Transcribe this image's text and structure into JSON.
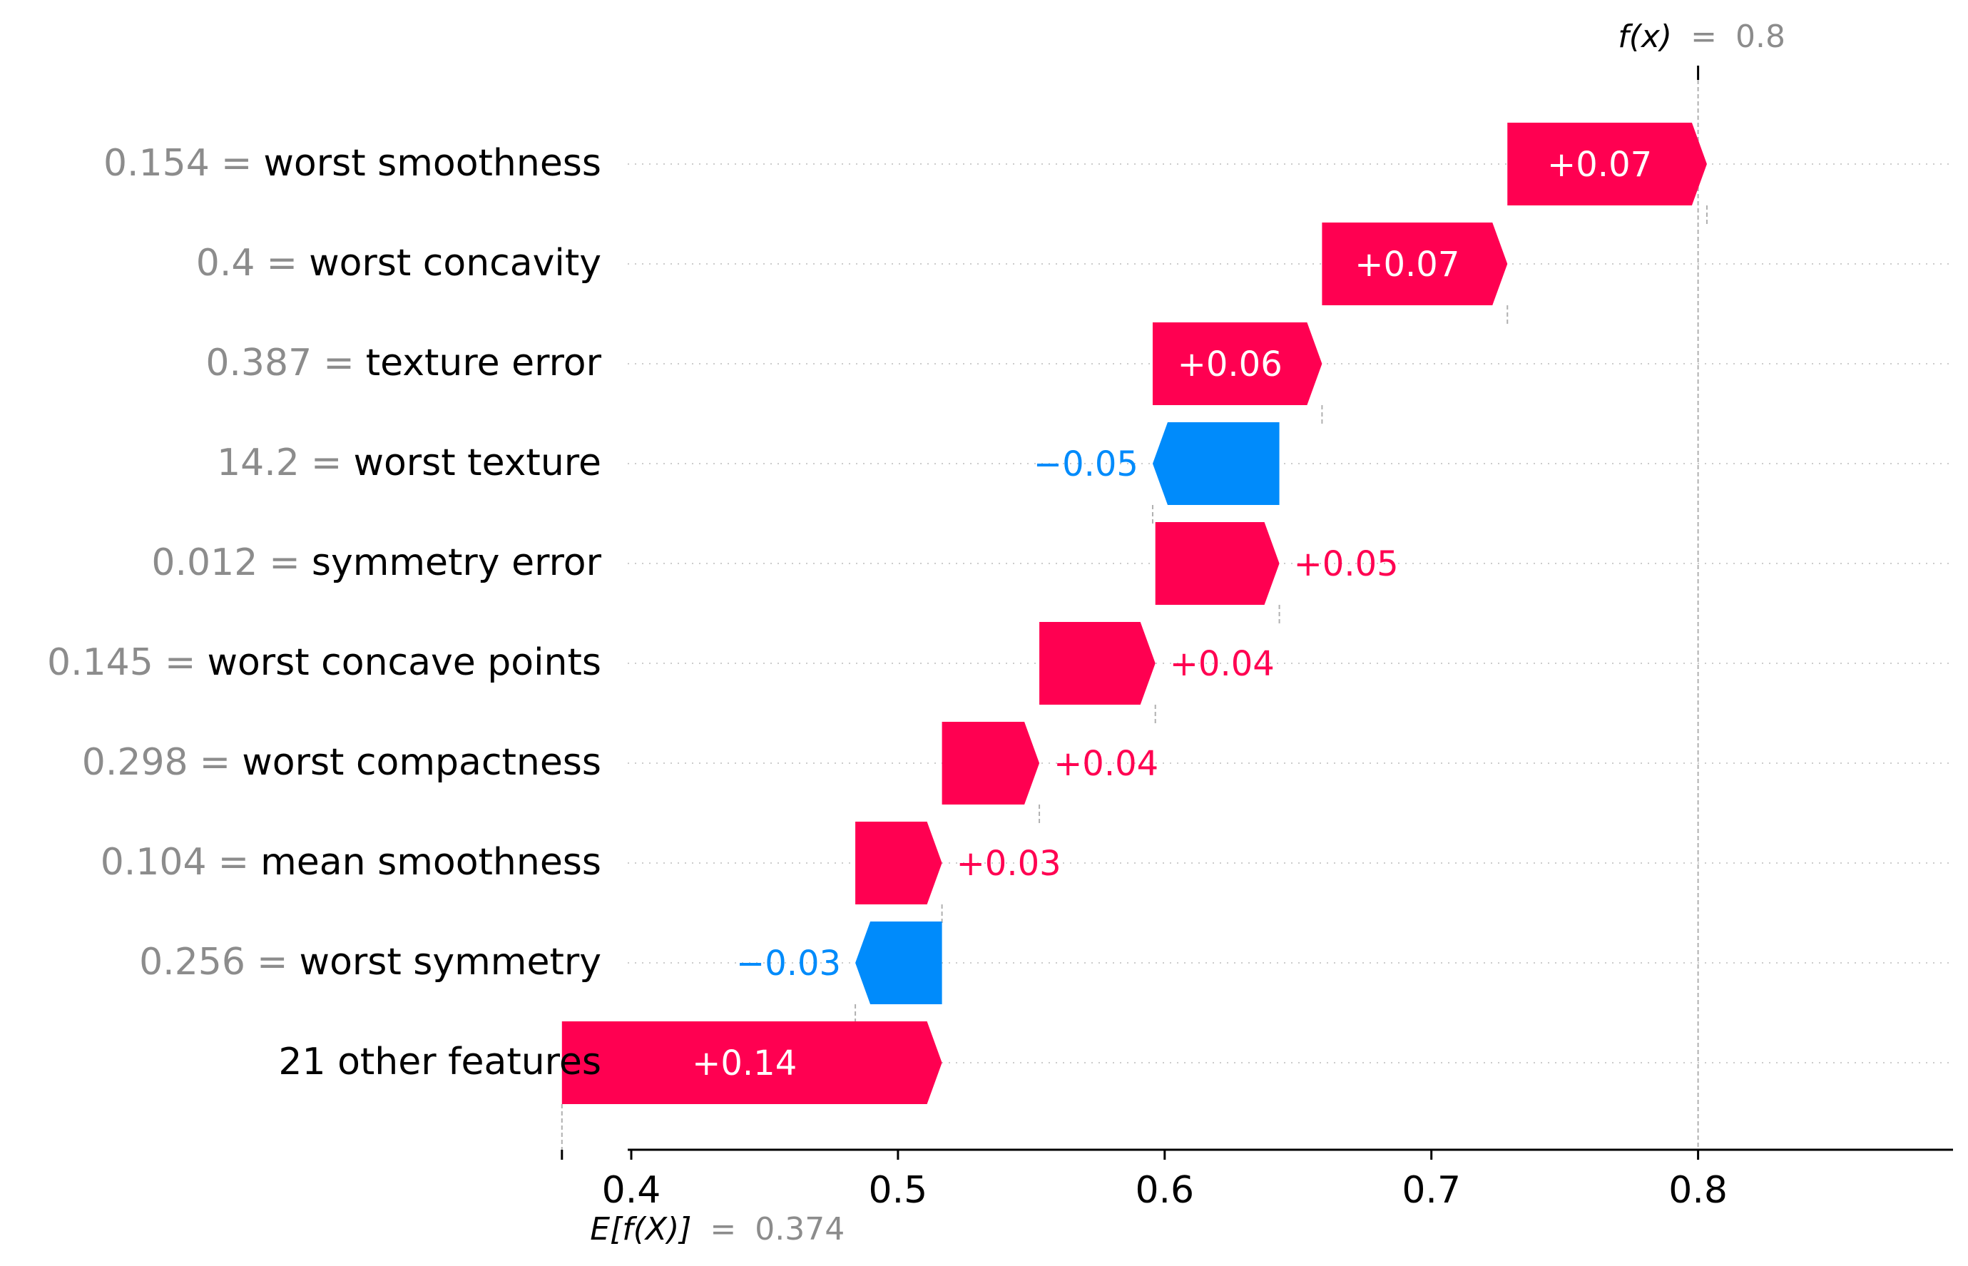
{
  "colors": {
    "positive": "#ff0051",
    "negative": "#008bfb",
    "muted": "#8c8c8c",
    "text": "#000000",
    "bar_label_inside": "#ffffff"
  },
  "chart_data": {
    "type": "waterfall",
    "base_value": 0.374,
    "output_value": 0.8,
    "xlim": [
      0.37,
      0.87
    ],
    "xticks": [
      0.4,
      0.5,
      0.6,
      0.7,
      0.8
    ],
    "xtick_labels": [
      "0.4",
      "0.5",
      "0.6",
      "0.7",
      "0.8"
    ],
    "top_label": {
      "name": "f(x)",
      "eq": "=",
      "value": "0.8"
    },
    "bottom_label": {
      "name": "E[f(X)]",
      "eq": "=",
      "value": "0.374"
    },
    "grid": "dotted rows",
    "features": [
      {
        "value_text": "0.154",
        "eq": "=",
        "name": "worst smoothness",
        "contribution": 0.0748,
        "label": "+0.07"
      },
      {
        "value_text": "0.4",
        "eq": "=",
        "name": "worst concavity",
        "contribution": 0.0695,
        "label": "+0.07"
      },
      {
        "value_text": "0.387",
        "eq": "=",
        "name": "texture error",
        "contribution": 0.0635,
        "label": "+0.06"
      },
      {
        "value_text": "14.2",
        "eq": "=",
        "name": "worst texture",
        "contribution": -0.0475,
        "label": "−0.05"
      },
      {
        "value_text": "0.012",
        "eq": "=",
        "name": "symmetry error",
        "contribution": 0.0465,
        "label": "+0.05"
      },
      {
        "value_text": "0.145",
        "eq": "=",
        "name": "worst concave points",
        "contribution": 0.0435,
        "label": "+0.04"
      },
      {
        "value_text": "0.298",
        "eq": "=",
        "name": "worst compactness",
        "contribution": 0.0365,
        "label": "+0.04"
      },
      {
        "value_text": "0.104",
        "eq": "=",
        "name": "mean smoothness",
        "contribution": 0.0325,
        "label": "+0.03"
      },
      {
        "value_text": "0.256",
        "eq": "=",
        "name": "worst symmetry",
        "contribution": -0.0325,
        "label": "−0.03"
      },
      {
        "value_text": "",
        "eq": "",
        "name": "21 other features",
        "contribution": 0.1425,
        "label": "+0.14"
      }
    ]
  }
}
